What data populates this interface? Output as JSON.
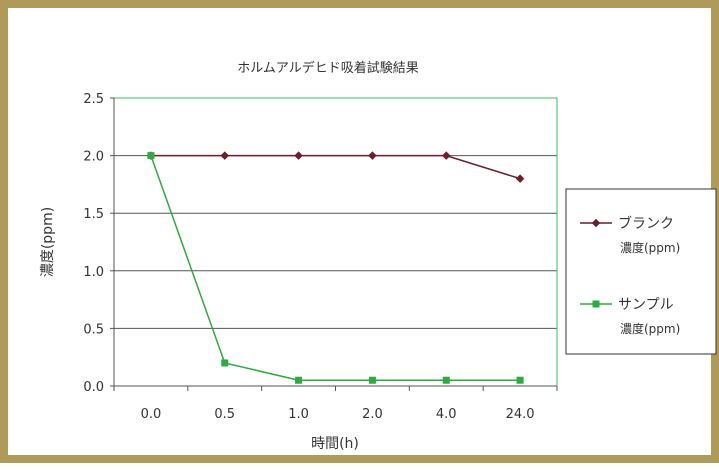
{
  "chart_data": {
    "type": "line",
    "title": "ホルムアルデヒド吸着試験結果",
    "xlabel": "時間(h)",
    "ylabel": "濃度(ppm)",
    "categories": [
      "0.0",
      "0.5",
      "1.0",
      "2.0",
      "4.0",
      "24.0"
    ],
    "ylim": [
      0,
      2.5
    ],
    "yticks": [
      "0.0",
      "0.5",
      "1.0",
      "1.5",
      "2.0",
      "2.5"
    ],
    "grid": true,
    "legend": "right",
    "series": [
      {
        "name": "ブランク濃度(ppm)",
        "values": [
          2.0,
          2.0,
          2.0,
          2.0,
          2.0,
          1.8
        ],
        "color": "#6b1f2a"
      },
      {
        "name": "サンプル濃度(ppm)",
        "values": [
          2.0,
          0.2,
          0.05,
          0.05,
          0.05,
          0.05
        ],
        "color": "#2faa3c"
      }
    ],
    "plot_border_color": "#3cc05a",
    "frame_color": "#b09a5a"
  }
}
